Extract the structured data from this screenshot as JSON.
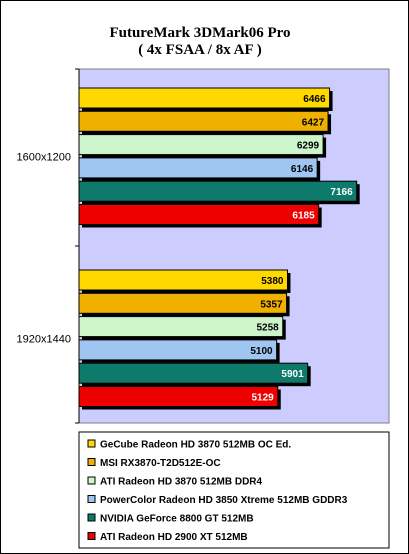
{
  "chart_data": {
    "type": "bar",
    "orientation": "horizontal",
    "title": "FutureMark 3DMark06 Pro",
    "subtitle": "( 4x FSAA / 8x AF )",
    "categories": [
      "1600x1200",
      "1920x1440"
    ],
    "series": [
      {
        "name": "GeCube Radeon HD 3870 512MB OC Ed.",
        "values": [
          6466,
          5380
        ],
        "color": "#ffd800",
        "label_color": "#000000"
      },
      {
        "name": "MSI RX3870-T2D512E-OC",
        "values": [
          6427,
          5357
        ],
        "color": "#f0b000",
        "label_color": "#000000"
      },
      {
        "name": "ATI Radeon HD 3870 512MB DDR4",
        "values": [
          6299,
          5258
        ],
        "color": "#ccf5cc",
        "label_color": "#000000"
      },
      {
        "name": "PowerColor Radeon HD 3850 Xtreme 512MB GDDR3",
        "values": [
          6146,
          5100
        ],
        "color": "#9ec6f0",
        "label_color": "#000000"
      },
      {
        "name": "NVIDIA GeForce 8800 GT 512MB",
        "values": [
          7166,
          5901
        ],
        "color": "#0d7a6c",
        "label_color": "#ffffff"
      },
      {
        "name": "ATI Radeon HD 2900 XT 512MB",
        "values": [
          6185,
          5129
        ],
        "color": "#ee0000",
        "label_color": "#ffffff"
      }
    ],
    "xlim": [
      0,
      8000
    ],
    "plot_background": "#ccccff",
    "legend_position": "bottom",
    "grid": false
  }
}
